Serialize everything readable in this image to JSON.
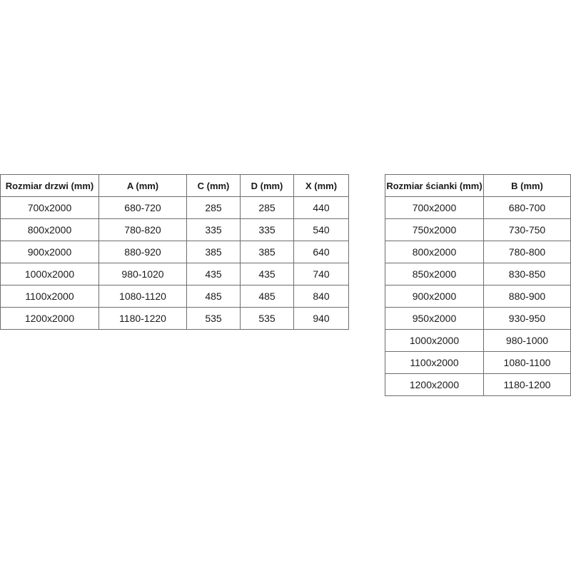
{
  "door_table": {
    "headers": [
      "Rozmiar drzwi (mm)",
      "A (mm)",
      "C (mm)",
      "D (mm)",
      "X (mm)"
    ],
    "rows": [
      [
        "700x2000",
        "680-720",
        "285",
        "285",
        "440"
      ],
      [
        "800x2000",
        "780-820",
        "335",
        "335",
        "540"
      ],
      [
        "900x2000",
        "880-920",
        "385",
        "385",
        "640"
      ],
      [
        "1000x2000",
        "980-1020",
        "435",
        "435",
        "740"
      ],
      [
        "1100x2000",
        "1080-1120",
        "485",
        "485",
        "840"
      ],
      [
        "1200x2000",
        "1180-1220",
        "535",
        "535",
        "940"
      ]
    ]
  },
  "wall_table": {
    "headers": [
      "Rozmiar ścianki (mm)",
      "B (mm)"
    ],
    "rows": [
      [
        "700x2000",
        "680-700"
      ],
      [
        "750x2000",
        "730-750"
      ],
      [
        "800x2000",
        "780-800"
      ],
      [
        "850x2000",
        "830-850"
      ],
      [
        "900x2000",
        "880-900"
      ],
      [
        "950x2000",
        "930-950"
      ],
      [
        "1000x2000",
        "980-1000"
      ],
      [
        "1100x2000",
        "1080-1100"
      ],
      [
        "1200x2000",
        "1180-1200"
      ]
    ]
  }
}
